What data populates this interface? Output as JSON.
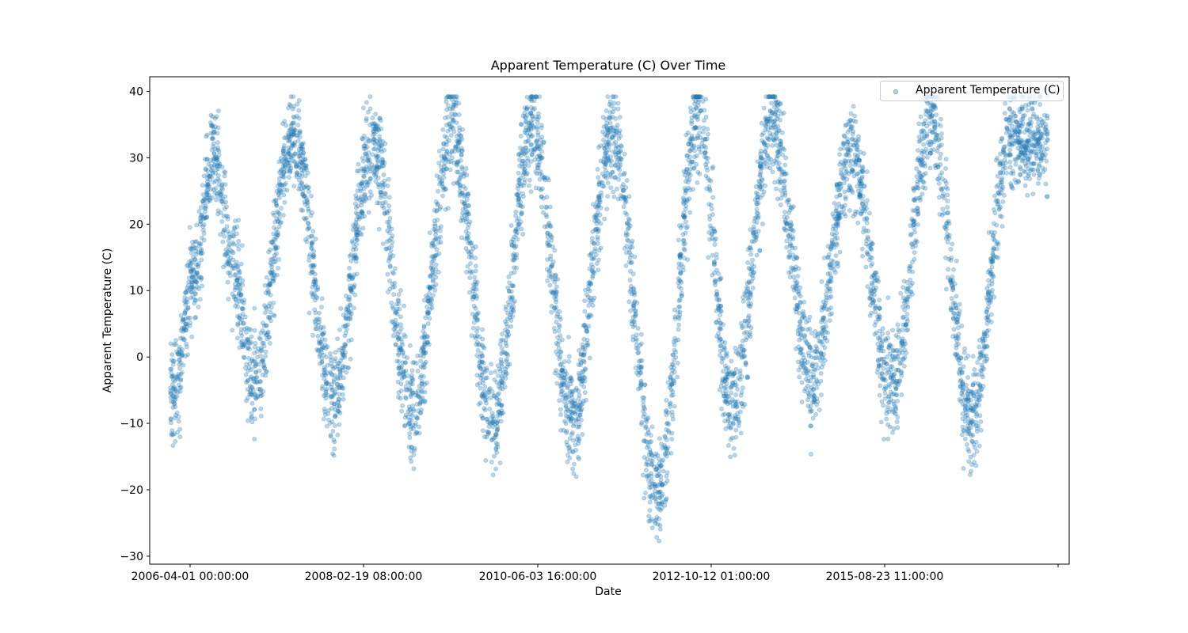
{
  "chart_data": {
    "type": "scatter",
    "title": "Apparent Temperature (C) Over Time",
    "xlabel": "Date",
    "ylabel": "Apparent Temperature (C)",
    "x_tick_labels": [
      "2006-04-01 00:00:00",
      "2008-02-19 08:00:00",
      "2010-06-03 16:00:00",
      "2012-10-12 01:00:00",
      "2015-08-23 11:00:00",
      ""
    ],
    "y_ticks": [
      -30,
      -20,
      -10,
      0,
      10,
      20,
      30,
      40
    ],
    "ylim": [
      -31.2,
      42.2
    ],
    "x_range": [
      "2006-01-01",
      "2016-12-31"
    ],
    "grid": false,
    "legend_position": "top-right",
    "series": [
      {
        "name": "Apparent Temperature (C)",
        "color": "#1f77b4",
        "marker_alpha": 0.3,
        "summer_peak_max": 38,
        "winter_trough_min": -21,
        "extreme_min": -27.7,
        "extreme_max": 39.2,
        "yearly_samples": [
          {
            "x": "2006-01-15",
            "y": -5
          },
          {
            "x": "2006-04-15",
            "y": 12
          },
          {
            "x": "2006-07-15",
            "y": 30
          },
          {
            "x": "2006-10-15",
            "y": 14
          },
          {
            "x": "2007-01-15",
            "y": -4
          },
          {
            "x": "2007-07-15",
            "y": 33
          },
          {
            "x": "2008-01-15",
            "y": -6
          },
          {
            "x": "2008-07-15",
            "y": 32
          },
          {
            "x": "2009-01-15",
            "y": -8
          },
          {
            "x": "2009-07-15",
            "y": 34
          },
          {
            "x": "2010-01-15",
            "y": -10
          },
          {
            "x": "2010-07-15",
            "y": 35
          },
          {
            "x": "2011-01-15",
            "y": -9
          },
          {
            "x": "2011-07-15",
            "y": 33
          },
          {
            "x": "2012-02-10",
            "y": -20
          },
          {
            "x": "2012-08-15",
            "y": 36
          },
          {
            "x": "2013-01-15",
            "y": -8
          },
          {
            "x": "2013-07-15",
            "y": 35
          },
          {
            "x": "2014-01-15",
            "y": -3
          },
          {
            "x": "2014-07-15",
            "y": 31
          },
          {
            "x": "2015-01-15",
            "y": -5
          },
          {
            "x": "2015-07-15",
            "y": 36
          },
          {
            "x": "2016-01-15",
            "y": -9
          },
          {
            "x": "2016-07-15",
            "y": 33
          }
        ]
      }
    ]
  }
}
